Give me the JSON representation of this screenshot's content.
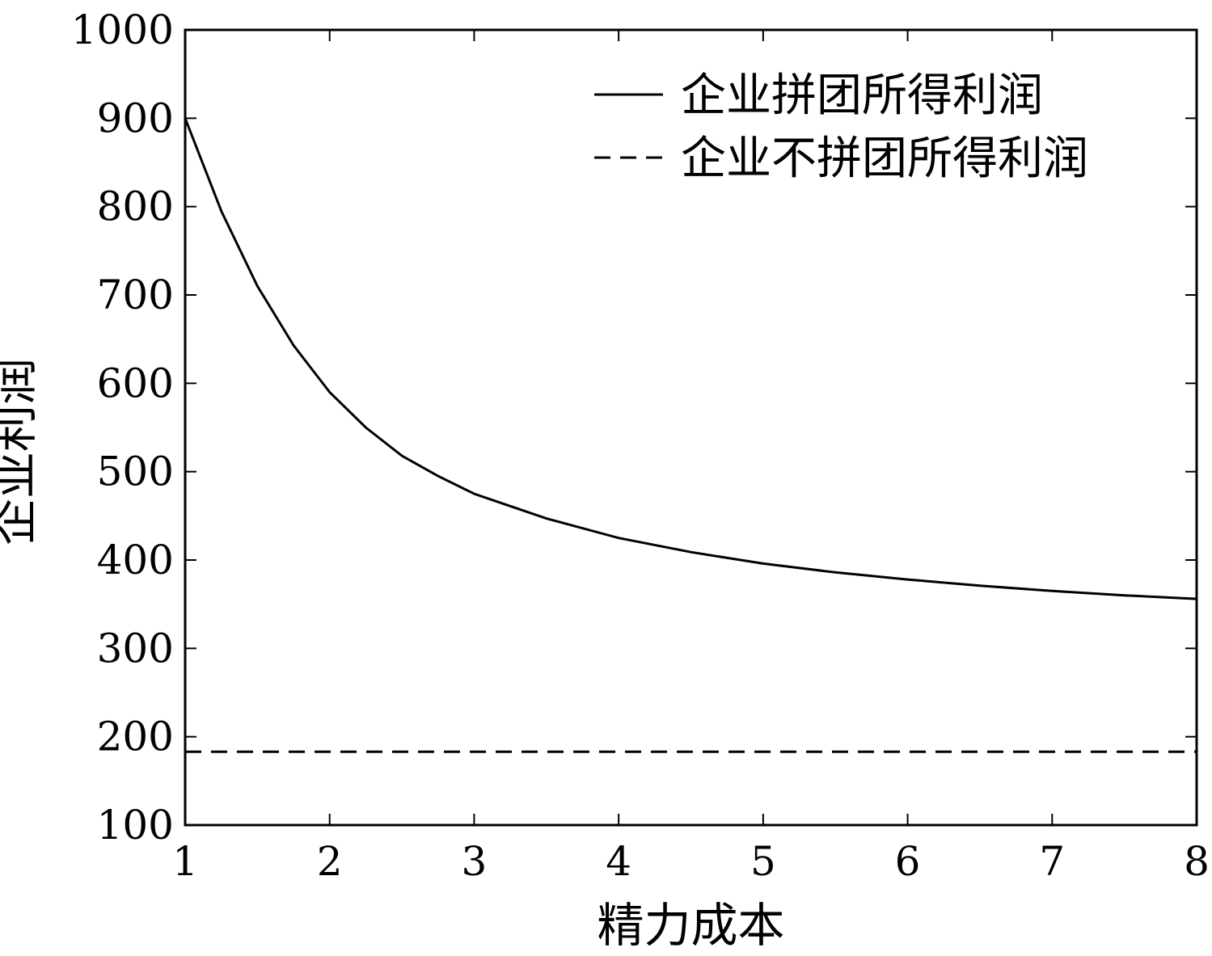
{
  "chart_data": {
    "type": "line",
    "xlabel": "精力成本",
    "ylabel": "企业利润",
    "xlim": [
      1,
      8
    ],
    "ylim": [
      100,
      1000
    ],
    "x_ticks": [
      "1",
      "2",
      "3",
      "4",
      "5",
      "6",
      "7",
      "8"
    ],
    "y_ticks": [
      "100",
      "200",
      "300",
      "400",
      "500",
      "600",
      "700",
      "800",
      "900",
      "1000"
    ],
    "grid": false,
    "legend_position": "top-right",
    "series": [
      {
        "name": "企业拼团所得利润",
        "style": "solid",
        "color": "#000000",
        "x": [
          1.0,
          1.25,
          1.5,
          1.75,
          2.0,
          2.25,
          2.5,
          2.75,
          3.0,
          3.5,
          4.0,
          4.5,
          5.0,
          5.5,
          6.0,
          6.5,
          7.0,
          7.5,
          8.0
        ],
        "y": [
          900,
          795,
          710,
          643,
          590,
          550,
          518,
          495,
          475,
          447,
          425,
          409,
          396,
          386,
          378,
          371,
          365,
          360,
          356
        ]
      },
      {
        "name": "企业不拼团所得利润",
        "style": "dashed",
        "color": "#000000",
        "x": [
          1,
          8
        ],
        "y": [
          183,
          183
        ]
      }
    ]
  }
}
